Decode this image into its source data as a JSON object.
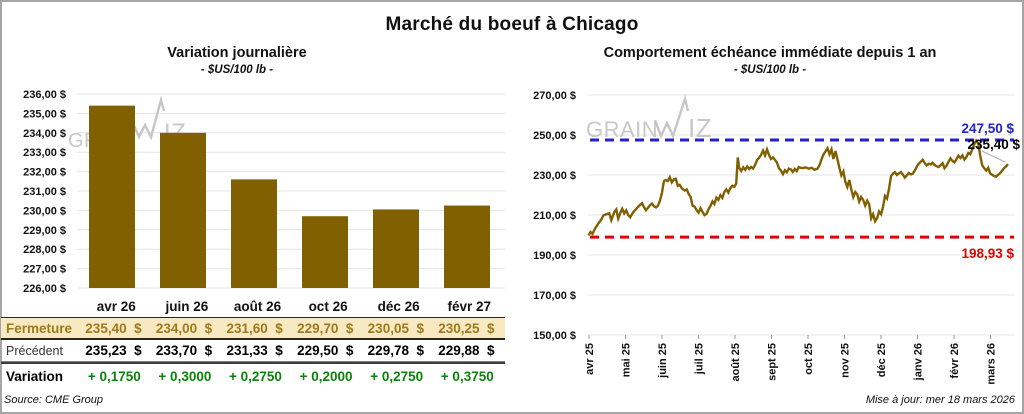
{
  "page": {
    "title": "Marché du boeuf à Chicago",
    "source": "Source: CME Group",
    "updated": "Mise à jour: mer 18 mars 2026",
    "watermark": "GRAINWIZ"
  },
  "colors": {
    "series_gold": "#806000",
    "fermeture_bg": "#F9E9C3",
    "fermeture_text": "#9C7A1C",
    "variation_green": "#098409",
    "ref_blue": "#2222CC",
    "ref_red": "#E60000",
    "grid": "#E4E4E4",
    "watermark_gray": "#C6C6C6"
  },
  "chart_data": [
    {
      "type": "bar",
      "title": "Variation journalière",
      "subtitle": "- $US/100 lb -",
      "categories": [
        "avr 26",
        "juin 26",
        "août 26",
        "oct 26",
        "déc 26",
        "févr 27"
      ],
      "values": [
        235.4,
        234.0,
        231.6,
        229.7,
        230.05,
        230.25
      ],
      "ylim": [
        226,
        236
      ],
      "ytick_step": 1,
      "ytick_labels": [
        "236,00 $",
        "235,00 $",
        "234,00 $",
        "233,00 $",
        "232,00 $",
        "231,00 $",
        "230,00 $",
        "229,00 $",
        "228,00 $",
        "227,00 $",
        "226,00 $"
      ],
      "ylabel": "",
      "xlabel": "",
      "grid": "horizontal",
      "legend": "none"
    },
    {
      "type": "line",
      "title": "Comportement échéance immédiate depuis 1 an",
      "subtitle": "- $US/100 lb -",
      "x_labels": [
        "avr 25",
        "mai 25",
        "juin 25",
        "juil 25",
        "août 25",
        "sept 25",
        "oct 25",
        "nov 25",
        "déc 25",
        "janv 26",
        "févr 26",
        "mars 26"
      ],
      "ylim": [
        150,
        270
      ],
      "ytick_step": 20,
      "ytick_labels": [
        "270,00 $",
        "250,00 $",
        "230,00 $",
        "210,00 $",
        "190,00 $",
        "170,00 $",
        "150,00 $"
      ],
      "ref_lines": [
        {
          "value": 247.5,
          "label": "247,50 $",
          "color_key": "ref_blue"
        },
        {
          "value": 198.93,
          "label": "198,93 $",
          "color_key": "ref_red"
        }
      ],
      "last_point_label": "235,40 $",
      "last_point_value": 235.4,
      "points": [
        [
          0.0,
          199.8
        ],
        [
          0.0047,
          201.5
        ],
        [
          0.0095,
          200.6
        ],
        [
          0.0165,
          203.5
        ],
        [
          0.0236,
          205.8
        ],
        [
          0.0307,
          207.8
        ],
        [
          0.0355,
          209.8
        ],
        [
          0.0426,
          210.4
        ],
        [
          0.0496,
          210.8
        ],
        [
          0.0544,
          207.4
        ],
        [
          0.0615,
          211.5
        ],
        [
          0.0662,
          212.8
        ],
        [
          0.0709,
          208.2
        ],
        [
          0.0757,
          211.0
        ],
        [
          0.0804,
          213.1
        ],
        [
          0.0851,
          210.8
        ],
        [
          0.0898,
          212.3
        ],
        [
          0.0946,
          210.0
        ],
        [
          0.0993,
          208.9
        ],
        [
          0.1064,
          211.3
        ],
        [
          0.1135,
          213.0
        ],
        [
          0.1206,
          214.6
        ],
        [
          0.1277,
          215.9
        ],
        [
          0.1324,
          214.0
        ],
        [
          0.1371,
          212.4
        ],
        [
          0.1418,
          213.6
        ],
        [
          0.1466,
          214.9
        ],
        [
          0.1513,
          215.7
        ],
        [
          0.156,
          214.4
        ],
        [
          0.1608,
          213.8
        ],
        [
          0.1655,
          214.6
        ],
        [
          0.1702,
          217.0
        ],
        [
          0.1749,
          221.0
        ],
        [
          0.1797,
          226.9
        ],
        [
          0.1844,
          227.5
        ],
        [
          0.1891,
          227.0
        ],
        [
          0.1939,
          228.9
        ],
        [
          0.1986,
          226.3
        ],
        [
          0.2033,
          227.8
        ],
        [
          0.208,
          228.1
        ],
        [
          0.2128,
          224.6
        ],
        [
          0.2175,
          225.1
        ],
        [
          0.2222,
          223.4
        ],
        [
          0.2293,
          222.2
        ],
        [
          0.234,
          222.8
        ],
        [
          0.2388,
          220.5
        ],
        [
          0.2435,
          219.0
        ],
        [
          0.2482,
          214.6
        ],
        [
          0.253,
          214.2
        ],
        [
          0.2577,
          212.4
        ],
        [
          0.2624,
          211.2
        ],
        [
          0.2671,
          213.4
        ],
        [
          0.2719,
          211.5
        ],
        [
          0.2766,
          209.9
        ],
        [
          0.2813,
          210.6
        ],
        [
          0.2861,
          212.8
        ],
        [
          0.2908,
          214.6
        ],
        [
          0.2955,
          216.8
        ],
        [
          0.3002,
          215.5
        ],
        [
          0.305,
          218.7
        ],
        [
          0.3097,
          217.6
        ],
        [
          0.3144,
          219.9
        ],
        [
          0.3191,
          218.6
        ],
        [
          0.3239,
          221.6
        ],
        [
          0.3286,
          222.8
        ],
        [
          0.3333,
          221.2
        ],
        [
          0.3381,
          223.4
        ],
        [
          0.3428,
          224.6
        ],
        [
          0.3475,
          224.1
        ],
        [
          0.3522,
          225.7
        ],
        [
          0.3558,
          238.8
        ],
        [
          0.3593,
          233.5
        ],
        [
          0.3641,
          232.0
        ],
        [
          0.3688,
          233.8
        ],
        [
          0.3735,
          232.6
        ],
        [
          0.3783,
          234.3
        ],
        [
          0.383,
          233.0
        ],
        [
          0.3877,
          234.0
        ],
        [
          0.3924,
          233.2
        ],
        [
          0.3972,
          235.0
        ],
        [
          0.4019,
          237.5
        ],
        [
          0.4066,
          238.6
        ],
        [
          0.4113,
          240.0
        ],
        [
          0.4161,
          242.2
        ],
        [
          0.4208,
          239.8
        ],
        [
          0.4255,
          242.8
        ],
        [
          0.4303,
          240.0
        ],
        [
          0.435,
          238.0
        ],
        [
          0.4397,
          238.8
        ],
        [
          0.4444,
          237.6
        ],
        [
          0.4492,
          236.3
        ],
        [
          0.4539,
          233.4
        ],
        [
          0.4586,
          232.2
        ],
        [
          0.4634,
          230.4
        ],
        [
          0.4681,
          232.4
        ],
        [
          0.4728,
          231.4
        ],
        [
          0.4775,
          233.2
        ],
        [
          0.4823,
          232.8
        ],
        [
          0.487,
          231.5
        ],
        [
          0.4917,
          233.0
        ],
        [
          0.4965,
          232.0
        ],
        [
          0.5012,
          234.0
        ],
        [
          0.5059,
          233.6
        ],
        [
          0.5106,
          233.5
        ],
        [
          0.5177,
          233.8
        ],
        [
          0.5248,
          233.2
        ],
        [
          0.5319,
          233.6
        ],
        [
          0.539,
          232.6
        ],
        [
          0.5461,
          233.2
        ],
        [
          0.5508,
          235.0
        ],
        [
          0.5556,
          238.0
        ],
        [
          0.5603,
          240.3
        ],
        [
          0.565,
          241.8
        ],
        [
          0.5697,
          243.4
        ],
        [
          0.5745,
          240.4
        ],
        [
          0.5792,
          242.8
        ],
        [
          0.5839,
          238.0
        ],
        [
          0.5887,
          242.0
        ],
        [
          0.5934,
          238.0
        ],
        [
          0.5981,
          233.5
        ],
        [
          0.6028,
          229.8
        ],
        [
          0.6076,
          231.8
        ],
        [
          0.6123,
          226.5
        ],
        [
          0.617,
          224.0
        ],
        [
          0.6217,
          227.5
        ],
        [
          0.6265,
          222.8
        ],
        [
          0.6312,
          219.0
        ],
        [
          0.6359,
          221.5
        ],
        [
          0.6407,
          220.3
        ],
        [
          0.6454,
          216.7
        ],
        [
          0.6501,
          219.0
        ],
        [
          0.6548,
          217.5
        ],
        [
          0.6596,
          214.7
        ],
        [
          0.6643,
          217.2
        ],
        [
          0.669,
          215.5
        ],
        [
          0.6738,
          208.3
        ],
        [
          0.6785,
          210.4
        ],
        [
          0.6832,
          206.9
        ],
        [
          0.6879,
          208.4
        ],
        [
          0.6927,
          211.8
        ],
        [
          0.6974,
          210.4
        ],
        [
          0.7021,
          214.0
        ],
        [
          0.7069,
          219.5
        ],
        [
          0.7116,
          218.2
        ],
        [
          0.7163,
          223.0
        ],
        [
          0.721,
          229.4
        ],
        [
          0.7258,
          230.7
        ],
        [
          0.7305,
          231.4
        ],
        [
          0.7352,
          230.0
        ],
        [
          0.74,
          230.8
        ],
        [
          0.7447,
          231.5
        ],
        [
          0.7494,
          230.2
        ],
        [
          0.7541,
          228.7
        ],
        [
          0.7589,
          229.8
        ],
        [
          0.7636,
          231.0
        ],
        [
          0.7683,
          230.3
        ],
        [
          0.773,
          230.7
        ],
        [
          0.7778,
          232.2
        ],
        [
          0.7825,
          234.2
        ],
        [
          0.7872,
          235.6
        ],
        [
          0.792,
          236.6
        ],
        [
          0.7967,
          237.6
        ],
        [
          0.8014,
          236.0
        ],
        [
          0.8061,
          234.8
        ],
        [
          0.8109,
          235.6
        ],
        [
          0.8156,
          235.3
        ],
        [
          0.8203,
          236.1
        ],
        [
          0.8251,
          235.0
        ],
        [
          0.8298,
          234.4
        ],
        [
          0.8345,
          234.0
        ],
        [
          0.8392,
          234.9
        ],
        [
          0.844,
          235.9
        ],
        [
          0.8487,
          233.4
        ],
        [
          0.8534,
          234.6
        ],
        [
          0.8582,
          236.6
        ],
        [
          0.8629,
          238.3
        ],
        [
          0.8676,
          237.0
        ],
        [
          0.8723,
          236.3
        ],
        [
          0.8771,
          237.8
        ],
        [
          0.8818,
          239.7
        ],
        [
          0.8865,
          238.5
        ],
        [
          0.8913,
          239.8
        ],
        [
          0.896,
          237.7
        ],
        [
          0.9007,
          238.9
        ],
        [
          0.9054,
          241.0
        ],
        [
          0.9102,
          240.4
        ],
        [
          0.9149,
          242.9
        ],
        [
          0.9196,
          245.3
        ],
        [
          0.9243,
          247.2
        ],
        [
          0.9291,
          245.8
        ],
        [
          0.9338,
          239.7
        ],
        [
          0.9385,
          234.9
        ],
        [
          0.9433,
          233.4
        ],
        [
          0.948,
          232.2
        ],
        [
          0.9527,
          233.6
        ],
        [
          0.9574,
          230.8
        ],
        [
          0.9622,
          230.1
        ],
        [
          0.9669,
          229.5
        ],
        [
          0.9716,
          229.2
        ],
        [
          0.9764,
          230.1
        ],
        [
          0.9811,
          230.9
        ],
        [
          0.9858,
          232.1
        ],
        [
          0.9905,
          233.4
        ],
        [
          0.9953,
          234.3
        ],
        [
          1.0,
          235.4
        ]
      ],
      "ylabel": "",
      "xlabel": "",
      "grid": "horizontal",
      "legend": "none"
    }
  ],
  "table": {
    "header": [
      "avr 26",
      "juin 26",
      "août 26",
      "oct 26",
      "déc 26",
      "févr 27"
    ],
    "currency": "$",
    "rows": [
      {
        "label": "Fermeture",
        "style": "fermeture",
        "values": [
          "235,40",
          "234,00",
          "231,60",
          "229,70",
          "230,05",
          "230,25"
        ],
        "currency": true
      },
      {
        "label": "Précédent",
        "style": "precedent",
        "values": [
          "235,23",
          "233,70",
          "231,33",
          "229,50",
          "229,78",
          "229,88"
        ],
        "currency": true
      },
      {
        "label": "Variation",
        "style": "variation",
        "values": [
          "+ 0,1750",
          "+ 0,3000",
          "+ 0,2750",
          "+ 0,2000",
          "+ 0,2750",
          "+ 0,3750"
        ],
        "currency": false
      }
    ]
  }
}
